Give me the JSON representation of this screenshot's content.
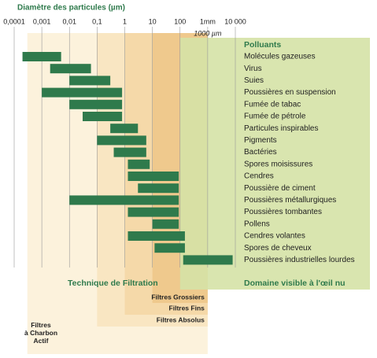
{
  "chart_data": {
    "type": "range-bar",
    "title": "Diamètre des particules (µm)",
    "xscale": "log",
    "xlim": [
      0.0001,
      10000
    ],
    "xticks": [
      {
        "value": 0.0001,
        "label": "0,0001"
      },
      {
        "value": 0.001,
        "label": "0,001"
      },
      {
        "value": 0.01,
        "label": "0,01"
      },
      {
        "value": 0.1,
        "label": "0,1"
      },
      1,
      10,
      100,
      {
        "value": 1000,
        "label": "1mm"
      },
      {
        "value": 10000,
        "label": "10 000"
      }
    ],
    "axis_note": "1000 µm",
    "grid": true,
    "categories": [
      "Molécules gazeuses",
      "Virus",
      "Suies",
      "Poussières en suspension",
      "Fumée de tabac",
      "Fumée de pétrole",
      "Particules inspirables",
      "Pigments",
      "Bactéries",
      "Spores moisissures",
      "Cendres",
      "Poussière de ciment",
      "Poussières métallurgiques",
      "Poussières tombantes",
      "Pollens",
      "Cendres volantes",
      "Spores de cheveux",
      "Poussières industrielles lourdes"
    ],
    "series": [
      {
        "name": "Polluants",
        "color": "#2f7a4c",
        "values": [
          [
            0.0002,
            0.005
          ],
          [
            0.002,
            0.06
          ],
          [
            0.01,
            0.3
          ],
          [
            0.001,
            0.8
          ],
          [
            0.01,
            0.8
          ],
          [
            0.03,
            0.8
          ],
          [
            0.3,
            3
          ],
          [
            0.1,
            6
          ],
          [
            0.4,
            6
          ],
          [
            1.3,
            8
          ],
          [
            1.3,
            90
          ],
          [
            3,
            90
          ],
          [
            0.01,
            90
          ],
          [
            1.3,
            90
          ],
          [
            10,
            90
          ],
          [
            1.3,
            150
          ],
          [
            12,
            150
          ],
          [
            130,
            8000
          ]
        ]
      }
    ],
    "zones": [
      {
        "name": "Filtres à Charbon Actif",
        "range": [
          0.0003,
          1000
        ],
        "color": "#fcf2dc"
      },
      {
        "name": "Filtres Absolus",
        "range": [
          0.1,
          1000
        ],
        "color": "#f9e6c2"
      },
      {
        "name": "Filtres Fins",
        "range": [
          1,
          1000
        ],
        "color": "#f5d9a9"
      },
      {
        "name": "Filtres Grossiers",
        "range": [
          10,
          1000
        ],
        "color": "#efc98d"
      }
    ],
    "filtration_title": "Technique de Filtration",
    "visible": {
      "label": "Domaine visible à l'œil nu",
      "from": 100,
      "color": "#d5e2a6"
    }
  }
}
